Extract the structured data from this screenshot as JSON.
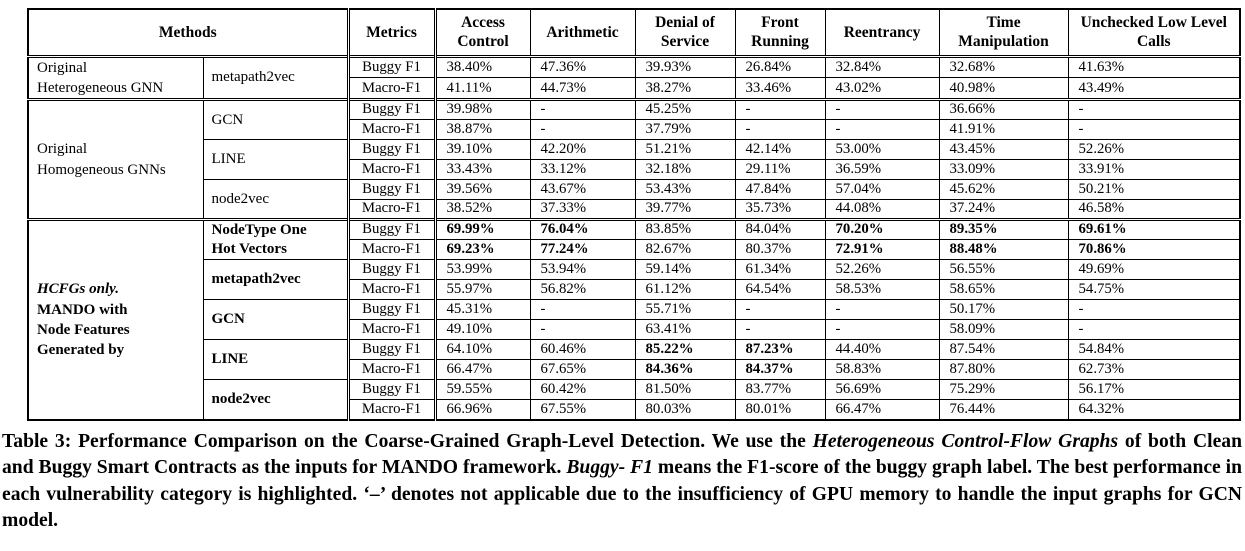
{
  "colors": {
    "text": "#000000",
    "background": "#ffffff",
    "border": "#000000"
  },
  "table": {
    "header": [
      {
        "label": "Methods",
        "colspan": 2
      },
      {
        "label": "Metrics"
      },
      {
        "label": "Access Control"
      },
      {
        "label": "Arithmetic"
      },
      {
        "label": "Denial of Service"
      },
      {
        "label": "Front Running"
      },
      {
        "label": "Reentrancy"
      },
      {
        "label": "Time Manipulation"
      },
      {
        "label": "Unchecked Low Level Calls"
      }
    ],
    "groups": [
      {
        "label": "Original Heterogeneous GNN",
        "label_lines": [
          {
            "text": "Original"
          },
          {
            "text": "Heterogeneous GNN"
          }
        ],
        "bold": false,
        "methods": [
          {
            "name": "metapath2vec",
            "bold": false,
            "rows": [
              {
                "metric": "Buggy F1",
                "values": [
                  "38.40%",
                  "47.36%",
                  "39.93%",
                  "26.84%",
                  "32.84%",
                  "32.68%",
                  "41.63%"
                ],
                "bold_cols": []
              },
              {
                "metric": "Macro-F1",
                "values": [
                  "41.11%",
                  "44.73%",
                  "38.27%",
                  "33.46%",
                  "43.02%",
                  "40.98%",
                  "43.49%"
                ],
                "bold_cols": []
              }
            ]
          }
        ]
      },
      {
        "label": "Original Homogeneous GNNs",
        "label_lines": [
          {
            "text": "Original"
          },
          {
            "text": "Homogeneous GNNs"
          }
        ],
        "bold": false,
        "methods": [
          {
            "name": "GCN",
            "bold": false,
            "rows": [
              {
                "metric": "Buggy F1",
                "values": [
                  "39.98%",
                  "-",
                  "45.25%",
                  "-",
                  "-",
                  "36.66%",
                  "-"
                ],
                "bold_cols": []
              },
              {
                "metric": "Macro-F1",
                "values": [
                  "38.87%",
                  "-",
                  "37.79%",
                  "-",
                  "-",
                  "41.91%",
                  "-"
                ],
                "bold_cols": []
              }
            ]
          },
          {
            "name": "LINE",
            "bold": false,
            "rows": [
              {
                "metric": "Buggy F1",
                "values": [
                  "39.10%",
                  "42.20%",
                  "51.21%",
                  "42.14%",
                  "53.00%",
                  "43.45%",
                  "52.26%"
                ],
                "bold_cols": []
              },
              {
                "metric": "Macro-F1",
                "values": [
                  "33.43%",
                  "33.12%",
                  "32.18%",
                  "29.11%",
                  "36.59%",
                  "33.09%",
                  "33.91%"
                ],
                "bold_cols": []
              }
            ]
          },
          {
            "name": "node2vec",
            "bold": false,
            "rows": [
              {
                "metric": "Buggy F1",
                "values": [
                  "39.56%",
                  "43.67%",
                  "53.43%",
                  "47.84%",
                  "57.04%",
                  "45.62%",
                  "50.21%"
                ],
                "bold_cols": []
              },
              {
                "metric": "Macro-F1",
                "values": [
                  "38.52%",
                  "37.33%",
                  "39.77%",
                  "35.73%",
                  "44.08%",
                  "37.24%",
                  "46.58%"
                ],
                "bold_cols": []
              }
            ]
          }
        ]
      },
      {
        "label": "HCFGs only. MANDO with Node Features Generated by",
        "label_lines": [
          {
            "text": "HCFGs only.",
            "italic": true
          },
          {
            "text": "MANDO with"
          },
          {
            "text": "Node Features"
          },
          {
            "text": "Generated by"
          }
        ],
        "bold": true,
        "methods": [
          {
            "name": "NodeType One Hot Vectors",
            "name_lines": [
              "NodeType One",
              "Hot Vectors"
            ],
            "bold": true,
            "rows": [
              {
                "metric": "Buggy F1",
                "values": [
                  "69.99%",
                  "76.04%",
                  "83.85%",
                  "84.04%",
                  "70.20%",
                  "89.35%",
                  "69.61%"
                ],
                "bold_cols": [
                  0,
                  1,
                  4,
                  5,
                  6
                ]
              },
              {
                "metric": "Macro-F1",
                "values": [
                  "69.23%",
                  "77.24%",
                  "82.67%",
                  "80.37%",
                  "72.91%",
                  "88.48%",
                  "70.86%"
                ],
                "bold_cols": [
                  0,
                  1,
                  4,
                  5,
                  6
                ]
              }
            ]
          },
          {
            "name": "metapath2vec",
            "bold": true,
            "rows": [
              {
                "metric": "Buggy F1",
                "values": [
                  "53.99%",
                  "53.94%",
                  "59.14%",
                  "61.34%",
                  "52.26%",
                  "56.55%",
                  "49.69%"
                ],
                "bold_cols": []
              },
              {
                "metric": "Macro-F1",
                "values": [
                  "55.97%",
                  "56.82%",
                  "61.12%",
                  "64.54%",
                  "58.53%",
                  "58.65%",
                  "54.75%"
                ],
                "bold_cols": []
              }
            ]
          },
          {
            "name": "GCN",
            "bold": true,
            "rows": [
              {
                "metric": "Buggy F1",
                "values": [
                  "45.31%",
                  "-",
                  "55.71%",
                  "-",
                  "-",
                  "50.17%",
                  "-"
                ],
                "bold_cols": []
              },
              {
                "metric": "Macro-F1",
                "values": [
                  "49.10%",
                  "-",
                  "63.41%",
                  "-",
                  "-",
                  "58.09%",
                  "-"
                ],
                "bold_cols": []
              }
            ]
          },
          {
            "name": "LINE",
            "bold": true,
            "rows": [
              {
                "metric": "Buggy F1",
                "values": [
                  "64.10%",
                  "60.46%",
                  "85.22%",
                  "87.23%",
                  "44.40%",
                  "87.54%",
                  "54.84%"
                ],
                "bold_cols": [
                  2,
                  3
                ]
              },
              {
                "metric": "Macro-F1",
                "values": [
                  "66.47%",
                  "67.65%",
                  "84.36%",
                  "84.37%",
                  "58.83%",
                  "87.80%",
                  "62.73%"
                ],
                "bold_cols": [
                  2,
                  3
                ]
              }
            ]
          },
          {
            "name": "node2vec",
            "bold": true,
            "rows": [
              {
                "metric": "Buggy F1",
                "values": [
                  "59.55%",
                  "60.42%",
                  "81.50%",
                  "83.77%",
                  "56.69%",
                  "75.29%",
                  "56.17%"
                ],
                "bold_cols": []
              },
              {
                "metric": "Macro-F1",
                "values": [
                  "66.96%",
                  "67.55%",
                  "80.03%",
                  "80.01%",
                  "66.47%",
                  "76.44%",
                  "64.32%"
                ],
                "bold_cols": []
              }
            ]
          }
        ]
      }
    ]
  },
  "caption": {
    "segments": [
      {
        "text": "Table 3: Performance Comparison on the Coarse-Grained Graph-Level Detection. We use the "
      },
      {
        "text": "Heterogeneous Control-Flow Graphs",
        "italic": true
      },
      {
        "text": " of both Clean and Buggy Smart Contracts as the inputs for MANDO framework. "
      },
      {
        "text": "Buggy- F1",
        "italic": true
      },
      {
        "text": " means the F1-score of the buggy graph label. The best performance in each vulnerability category is highlighted. ‘–’ denotes not applicable due to the insufficiency of GPU memory to handle the input graphs for GCN model."
      }
    ]
  }
}
